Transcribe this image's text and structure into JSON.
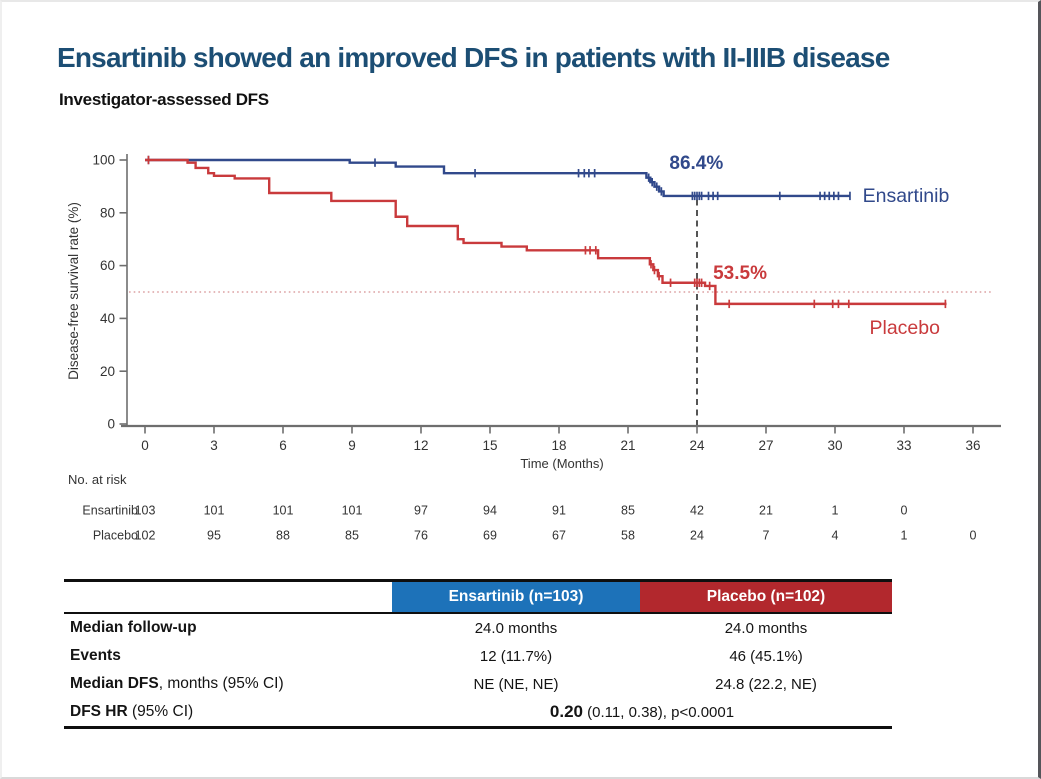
{
  "header": {
    "title": "Ensartinib showed an improved DFS in patients with II-IIIB disease",
    "subtitle": "Investigator-assessed DFS"
  },
  "colors": {
    "title": "#1c4e74",
    "ensartinib": "#31498b",
    "placebo": "#c93a3c",
    "header_blue": "#1d72b9",
    "header_red": "#b2282d",
    "axis": "#6e6e6e",
    "tick_text": "#333333",
    "dotted_ref": "#dca0a2",
    "dashed_ref": "#2b2b2b"
  },
  "chart_data": {
    "type": "line",
    "subtype": "kaplan-meier-step",
    "title": "",
    "xlabel": "Time (Months)",
    "ylabel": "Disease-free survival rate (%)",
    "xlim": [
      0,
      36
    ],
    "ylim": [
      0,
      100
    ],
    "xticks": [
      0,
      3,
      6,
      9,
      12,
      15,
      18,
      21,
      24,
      27,
      30,
      33,
      36
    ],
    "yticks": [
      0,
      20,
      40,
      60,
      80,
      100
    ],
    "grid": false,
    "legend_position": "curve-end-labels",
    "reference_lines": {
      "vertical_dashed_x": 24,
      "vertical_dashed_top_y": 86.4,
      "horizontal_dotted_y": 50
    },
    "series": [
      {
        "name": "Ensartinib",
        "color": "#31498b",
        "steps": [
          [
            0,
            100
          ],
          [
            8.9,
            99
          ],
          [
            10.9,
            97.5
          ],
          [
            13.0,
            95
          ],
          [
            21.8,
            93.3
          ],
          [
            21.97,
            91.6
          ],
          [
            22.15,
            89.9
          ],
          [
            22.35,
            88.1
          ],
          [
            22.55,
            86.4
          ],
          [
            30.65,
            86.4
          ]
        ],
        "censors": [
          [
            0.15,
            100
          ],
          [
            10.0,
            99
          ],
          [
            14.35,
            95
          ],
          [
            18.85,
            95
          ],
          [
            19.1,
            95
          ],
          [
            19.3,
            95
          ],
          [
            19.55,
            95
          ],
          [
            21.9,
            93.3
          ],
          [
            22.05,
            91.6
          ],
          [
            22.25,
            89.9
          ],
          [
            22.45,
            88.1
          ],
          [
            23.8,
            86.4
          ],
          [
            23.9,
            86.4
          ],
          [
            24.0,
            86.4
          ],
          [
            24.1,
            86.4
          ],
          [
            24.2,
            86.4
          ],
          [
            24.5,
            86.4
          ],
          [
            24.7,
            86.4
          ],
          [
            24.9,
            86.4
          ],
          [
            27.6,
            86.4
          ],
          [
            29.35,
            86.4
          ],
          [
            29.55,
            86.4
          ],
          [
            29.75,
            86.4
          ],
          [
            29.95,
            86.4
          ],
          [
            30.15,
            86.4
          ],
          [
            30.65,
            86.4
          ]
        ],
        "rate_annotation": {
          "text": "86.4%",
          "x": 22.8,
          "y": 96.5
        },
        "end_label": {
          "text": "Ensartinib",
          "x": 31.2,
          "y": 84
        }
      },
      {
        "name": "Placebo",
        "color": "#c93a3c",
        "steps": [
          [
            0,
            100
          ],
          [
            1.85,
            99
          ],
          [
            2.2,
            97
          ],
          [
            2.75,
            95
          ],
          [
            3.0,
            94
          ],
          [
            3.9,
            93
          ],
          [
            5.4,
            87.5
          ],
          [
            8.1,
            84.5
          ],
          [
            10.9,
            78.5
          ],
          [
            11.4,
            75
          ],
          [
            13.6,
            70
          ],
          [
            13.85,
            68.6
          ],
          [
            15.5,
            67.2
          ],
          [
            16.6,
            65.8
          ],
          [
            19.7,
            62.8
          ],
          [
            21.95,
            60.5
          ],
          [
            22.1,
            58.3
          ],
          [
            22.3,
            56
          ],
          [
            22.5,
            53.5
          ],
          [
            24.35,
            52.3
          ],
          [
            24.8,
            45.5
          ],
          [
            34.85,
            45.5
          ]
        ],
        "censors": [
          [
            0.15,
            100
          ],
          [
            19.15,
            65.8
          ],
          [
            19.35,
            65.8
          ],
          [
            19.6,
            65.8
          ],
          [
            22.0,
            60.5
          ],
          [
            22.15,
            58.3
          ],
          [
            22.35,
            56
          ],
          [
            22.85,
            53.5
          ],
          [
            23.9,
            53.5
          ],
          [
            24.0,
            53.5
          ],
          [
            24.1,
            53.5
          ],
          [
            24.2,
            53.5
          ],
          [
            24.55,
            52.3
          ],
          [
            25.4,
            45.5
          ],
          [
            29.1,
            45.5
          ],
          [
            29.9,
            45.5
          ],
          [
            30.15,
            45.5
          ],
          [
            30.6,
            45.5
          ],
          [
            34.8,
            45.5
          ]
        ],
        "rate_annotation": {
          "text": "53.5%",
          "x": 24.7,
          "y": 55
        },
        "end_label": {
          "text": "Placebo",
          "x": 31.5,
          "y": 34
        }
      }
    ],
    "at_risk": {
      "label": "No. at risk",
      "rows": [
        {
          "name": "Ensartinib",
          "values": [
            103,
            101,
            101,
            101,
            97,
            94,
            91,
            85,
            42,
            21,
            1,
            0
          ]
        },
        {
          "name": "Placebo",
          "values": [
            102,
            95,
            88,
            85,
            76,
            69,
            67,
            58,
            24,
            7,
            4,
            1,
            0
          ]
        }
      ]
    }
  },
  "table": {
    "columns": [
      "",
      "Ensartinib (n=103)",
      "Placebo (n=102)"
    ],
    "header_colors": [
      "#1d72b9",
      "#b2282d"
    ],
    "rows": [
      {
        "label_bold": "Median follow-up",
        "label_rest": "",
        "values": [
          "24.0 months",
          "24.0 months"
        ]
      },
      {
        "label_bold": "Events",
        "label_rest": "",
        "values": [
          "12 (11.7%)",
          "46 (45.1%)"
        ]
      },
      {
        "label_bold": "Median DFS",
        "label_rest": ", months (95% CI)",
        "values": [
          "NE (NE, NE)",
          "24.8 (22.2, NE)"
        ]
      },
      {
        "label_bold": "DFS HR",
        "label_rest": " (95% CI)",
        "value_bold": "0.20",
        "value_rest": " (0.11, 0.38), p<0.0001"
      }
    ]
  }
}
